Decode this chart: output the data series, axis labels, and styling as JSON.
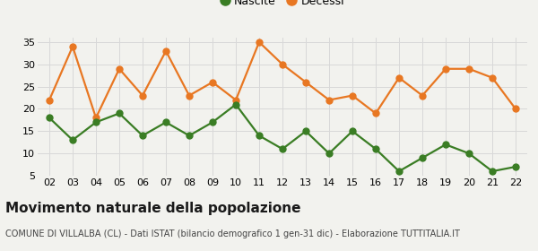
{
  "years": [
    2,
    3,
    4,
    5,
    6,
    7,
    8,
    9,
    10,
    11,
    12,
    13,
    14,
    15,
    16,
    17,
    18,
    19,
    20,
    21,
    22
  ],
  "nascite": [
    18,
    13,
    17,
    19,
    14,
    17,
    14,
    17,
    21,
    14,
    11,
    15,
    10,
    15,
    11,
    6,
    9,
    12,
    10,
    6,
    7
  ],
  "decessi": [
    22,
    34,
    18,
    29,
    23,
    33,
    23,
    26,
    22,
    35,
    30,
    26,
    22,
    23,
    19,
    27,
    23,
    29,
    29,
    27,
    20
  ],
  "nascite_color": "#3a7d24",
  "decessi_color": "#e87722",
  "bg_color": "#f2f2ee",
  "grid_color": "#d8d8d8",
  "title": "Movimento naturale della popolazione",
  "subtitle": "COMUNE DI VILLALBA (CL) - Dati ISTAT (bilancio demografico 1 gen-31 dic) - Elaborazione TUTTITALIA.IT",
  "legend_nascite": "Nascite",
  "legend_decessi": "Decessi",
  "ylim_min": 5,
  "ylim_max": 36,
  "yticks": [
    5,
    10,
    15,
    20,
    25,
    30,
    35
  ],
  "marker_size": 5,
  "line_width": 1.6,
  "title_fontsize": 11,
  "subtitle_fontsize": 7,
  "tick_fontsize": 8,
  "legend_fontsize": 9
}
